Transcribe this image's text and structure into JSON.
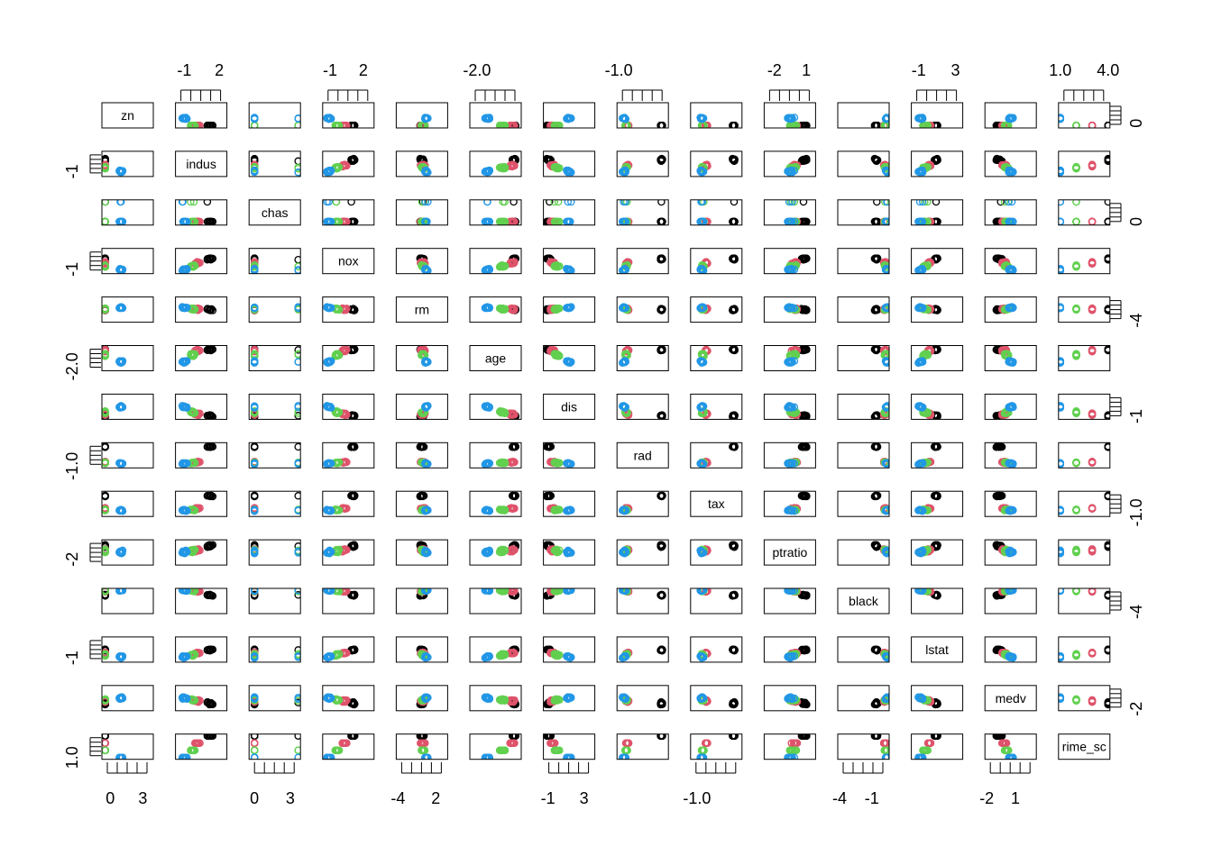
{
  "chart_data": {
    "type": "scatter",
    "variables": [
      "zn",
      "indus",
      "chas",
      "nox",
      "rm",
      "age",
      "dis",
      "rad",
      "tax",
      "ptratio",
      "black",
      "lstat",
      "medv",
      "crime_scaled"
    ],
    "diag_labels": [
      "zn",
      "indus",
      "chas",
      "nox",
      "rm",
      "age",
      "dis",
      "rad",
      "tax",
      "ptratio",
      "black",
      "lstat",
      "medv",
      "rime_sc"
    ],
    "group_colors": [
      "#000000",
      "#DF536B",
      "#61D04F",
      "#2297E6"
    ],
    "ranges": [
      [
        -0.6,
        3.8
      ],
      [
        -1.6,
        2.5
      ],
      [
        -0.3,
        3.7
      ],
      [
        -1.5,
        2.8
      ],
      [
        -4.0,
        3.6
      ],
      [
        -2.4,
        1.2
      ],
      [
        -1.3,
        4.0
      ],
      [
        -1.0,
        1.7
      ],
      [
        -1.3,
        1.8
      ],
      [
        -2.8,
        1.7
      ],
      [
        -4.0,
        0.45
      ],
      [
        -1.6,
        3.6
      ],
      [
        -2.0,
        3.0
      ],
      [
        1.0,
        4.0
      ]
    ],
    "axis_labels": {
      "top": [
        {
          "col": 1,
          "ticks": [
            "-1",
            "2"
          ],
          "at": [
            -1,
            2
          ]
        },
        {
          "col": 3,
          "ticks": [
            "-1",
            "2"
          ],
          "at": [
            -1,
            2
          ]
        },
        {
          "col": 5,
          "ticks": [
            "-2.0"
          ],
          "at": [
            -2.0
          ]
        },
        {
          "col": 7,
          "ticks": [
            "-1.0"
          ],
          "at": [
            -1.0
          ]
        },
        {
          "col": 9,
          "ticks": [
            "-2",
            "1"
          ],
          "at": [
            -2,
            1
          ]
        },
        {
          "col": 11,
          "ticks": [
            "-1",
            "3"
          ],
          "at": [
            -1,
            3
          ]
        },
        {
          "col": 13,
          "ticks": [
            "1.0",
            "4.0"
          ],
          "at": [
            1.0,
            4.0
          ]
        }
      ],
      "bottom": [
        {
          "col": 0,
          "ticks": [
            "0",
            "3"
          ],
          "at": [
            0,
            3
          ]
        },
        {
          "col": 2,
          "ticks": [
            "0",
            "3"
          ],
          "at": [
            0,
            3
          ]
        },
        {
          "col": 4,
          "ticks": [
            "-4",
            "2"
          ],
          "at": [
            -4,
            2
          ]
        },
        {
          "col": 6,
          "ticks": [
            "-1",
            "3"
          ],
          "at": [
            -1,
            3
          ]
        },
        {
          "col": 8,
          "ticks": [
            "-1.0"
          ],
          "at": [
            -1.0
          ]
        },
        {
          "col": 10,
          "ticks": [
            "-4",
            "-1"
          ],
          "at": [
            -4,
            -1
          ]
        },
        {
          "col": 12,
          "ticks": [
            "-2",
            "1"
          ],
          "at": [
            -2,
            1
          ]
        }
      ],
      "left": [
        {
          "row": 1,
          "ticks": [
            "-1"
          ],
          "at": [
            -1
          ]
        },
        {
          "row": 3,
          "ticks": [
            "-1"
          ],
          "at": [
            -1
          ]
        },
        {
          "row": 5,
          "ticks": [
            "-2.0"
          ],
          "at": [
            -2.0
          ]
        },
        {
          "row": 7,
          "ticks": [
            "-1.0"
          ],
          "at": [
            -1.0
          ]
        },
        {
          "row": 9,
          "ticks": [
            "-2"
          ],
          "at": [
            -2
          ]
        },
        {
          "row": 11,
          "ticks": [
            "-1"
          ],
          "at": [
            -1
          ]
        },
        {
          "row": 13,
          "ticks": [
            "1.0"
          ],
          "at": [
            1.0
          ]
        }
      ],
      "right": [
        {
          "row": 0,
          "ticks": [
            "0"
          ],
          "at": [
            0
          ]
        },
        {
          "row": 2,
          "ticks": [
            "0"
          ],
          "at": [
            0
          ]
        },
        {
          "row": 4,
          "ticks": [
            "-4"
          ],
          "at": [
            -4
          ]
        },
        {
          "row": 6,
          "ticks": [
            "-1"
          ],
          "at": [
            -1
          ]
        },
        {
          "row": 8,
          "ticks": [
            "-1.0"
          ],
          "at": [
            -1.0
          ]
        },
        {
          "row": 10,
          "ticks": [
            "-4"
          ],
          "at": [
            -4
          ]
        },
        {
          "row": 12,
          "ticks": [
            "-2"
          ],
          "at": [
            -2
          ]
        }
      ]
    },
    "grid": false,
    "legend": "none"
  }
}
